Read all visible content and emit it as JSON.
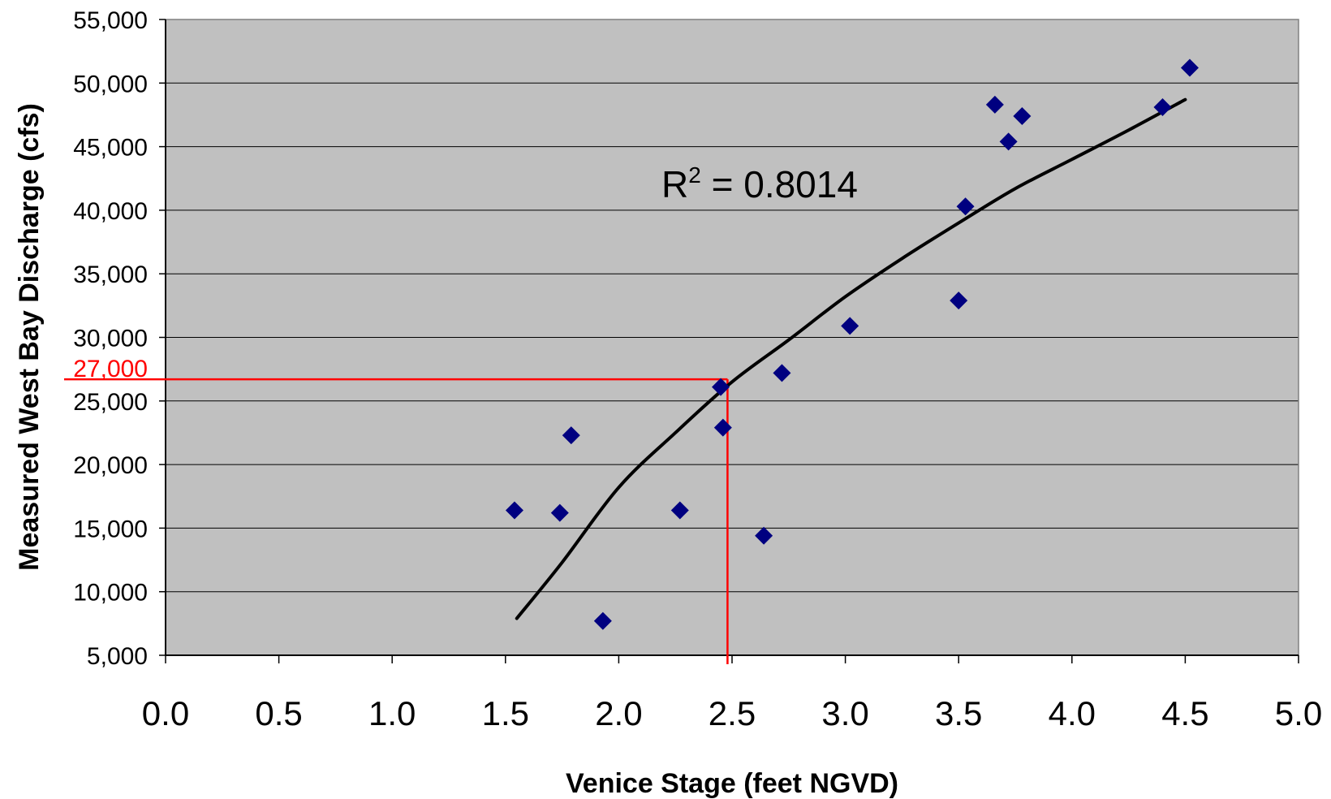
{
  "chart_data": {
    "type": "scatter",
    "title": "",
    "xlabel": "Venice Stage (feet NGVD)",
    "ylabel": "Measured West Bay Discharge (cfs)",
    "xlim": [
      0.0,
      5.0
    ],
    "ylim": [
      5000,
      55000
    ],
    "x_ticks": [
      "0.0",
      "0.5",
      "1.0",
      "1.5",
      "2.0",
      "2.5",
      "3.0",
      "3.5",
      "4.0",
      "4.5",
      "5.0"
    ],
    "y_ticks": [
      "5,000",
      "10,000",
      "15,000",
      "20,000",
      "25,000",
      "30,000",
      "35,000",
      "40,000",
      "45,000",
      "50,000",
      "55,000"
    ],
    "grid": "horizontal",
    "plot_background": "#c0c0c0",
    "marker_color": "#000080",
    "marker_shape": "diamond",
    "trendline_color": "#000000",
    "series": [
      {
        "points": [
          {
            "x": 1.54,
            "y": 16400
          },
          {
            "x": 1.74,
            "y": 16200
          },
          {
            "x": 1.79,
            "y": 22300
          },
          {
            "x": 1.93,
            "y": 7700
          },
          {
            "x": 2.27,
            "y": 16400
          },
          {
            "x": 2.45,
            "y": 26100
          },
          {
            "x": 2.46,
            "y": 22900
          },
          {
            "x": 2.64,
            "y": 14400
          },
          {
            "x": 2.72,
            "y": 27200
          },
          {
            "x": 3.02,
            "y": 30900
          },
          {
            "x": 3.5,
            "y": 32900
          },
          {
            "x": 3.53,
            "y": 40300
          },
          {
            "x": 3.66,
            "y": 48300
          },
          {
            "x": 3.72,
            "y": 45400
          },
          {
            "x": 3.78,
            "y": 47400
          },
          {
            "x": 4.4,
            "y": 48100
          },
          {
            "x": 4.52,
            "y": 51200
          }
        ]
      }
    ],
    "trendline": {
      "type": "power",
      "points": [
        {
          "x": 1.55,
          "y": 7900
        },
        {
          "x": 1.75,
          "y": 12300
        },
        {
          "x": 2.0,
          "y": 18200
        },
        {
          "x": 2.25,
          "y": 22500
        },
        {
          "x": 2.5,
          "y": 26500
        },
        {
          "x": 2.75,
          "y": 29800
        },
        {
          "x": 3.0,
          "y": 33200
        },
        {
          "x": 3.25,
          "y": 36200
        },
        {
          "x": 3.5,
          "y": 39000
        },
        {
          "x": 3.75,
          "y": 41700
        },
        {
          "x": 4.0,
          "y": 44000
        },
        {
          "x": 4.25,
          "y": 46300
        },
        {
          "x": 4.5,
          "y": 48700
        }
      ],
      "annotation": {
        "prefix": "R",
        "superscript": "2",
        "text": " = 0.8014"
      }
    },
    "reference": {
      "x": 2.48,
      "y": 26700,
      "color": "#ff0000",
      "label": "27,000"
    }
  }
}
